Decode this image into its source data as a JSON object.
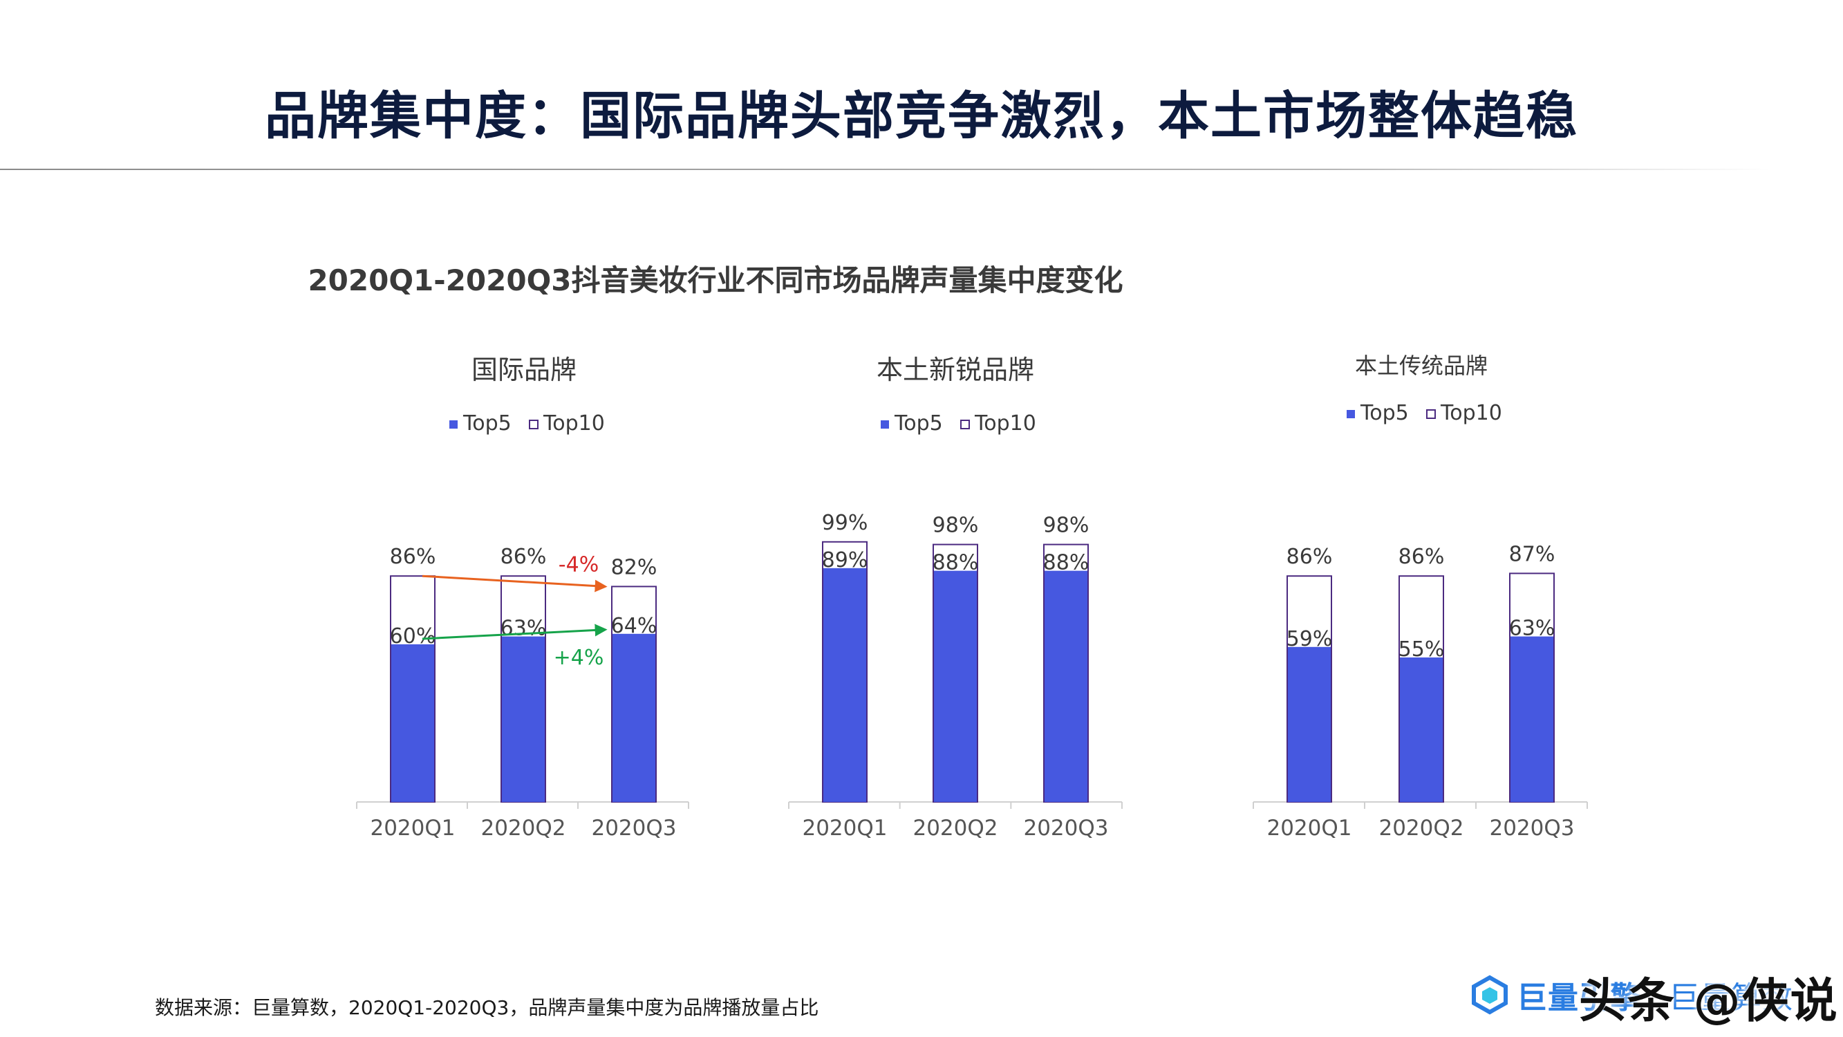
{
  "page": {
    "title": "品牌集中度：国际品牌头部竞争激烈，本土市场整体趋稳",
    "subtitle": "2020Q1-2020Q3抖音美妆行业不同市场品牌声量集中度变化",
    "footnote": "数据来源：巨量算数，2020Q1-2020Q3，品牌声量集中度为品牌播放量占比",
    "logo_text": "巨量引擎",
    "logo_text2": "巨量算数",
    "watermark": "头条 @侠说"
  },
  "colors": {
    "top5": "#4658e0",
    "top10_border": "#4b2a80",
    "axis": "#d0d0d0",
    "down_arrow": "#e8621f",
    "up_arrow": "#16a34a",
    "down_text": "#d62828",
    "up_text": "#16a34a"
  },
  "chart_data": [
    {
      "type": "bar",
      "title": "国际品牌",
      "categories": [
        "2020Q1",
        "2020Q2",
        "2020Q3"
      ],
      "series": [
        {
          "name": "Top5",
          "values": [
            60,
            63,
            64
          ]
        },
        {
          "name": "Top10",
          "values": [
            86,
            86,
            82
          ]
        }
      ],
      "value_labels": {
        "Top5": [
          "60%",
          "63%",
          "64%"
        ],
        "Top10": [
          "86%",
          "86%",
          "82%"
        ]
      },
      "legend": "top-center",
      "annotations": [
        {
          "text": "-4%",
          "from": "2020Q1",
          "to": "2020Q3",
          "series": "Top10",
          "trend": "down"
        },
        {
          "text": "+4%",
          "from": "2020Q1",
          "to": "2020Q3",
          "series": "Top5",
          "trend": "up"
        }
      ],
      "grid": false
    },
    {
      "type": "bar",
      "title": "本土新锐品牌",
      "categories": [
        "2020Q1",
        "2020Q2",
        "2020Q3"
      ],
      "series": [
        {
          "name": "Top5",
          "values": [
            89,
            88,
            88
          ]
        },
        {
          "name": "Top10",
          "values": [
            99,
            98,
            98
          ]
        }
      ],
      "value_labels": {
        "Top5": [
          "89%",
          "88%",
          "88%"
        ],
        "Top10": [
          "99%",
          "98%",
          "98%"
        ]
      },
      "legend": "top-center",
      "annotations": [],
      "grid": false
    },
    {
      "type": "bar",
      "title": "本土传统品牌",
      "categories": [
        "2020Q1",
        "2020Q2",
        "2020Q3"
      ],
      "series": [
        {
          "name": "Top5",
          "values": [
            59,
            55,
            63
          ]
        },
        {
          "name": "Top10",
          "values": [
            86,
            86,
            87
          ]
        }
      ],
      "value_labels": {
        "Top5": [
          "59%",
          "55%",
          "63%"
        ],
        "Top10": [
          "86%",
          "86%",
          "87%"
        ]
      },
      "legend": "top-center",
      "annotations": [],
      "grid": false
    }
  ]
}
